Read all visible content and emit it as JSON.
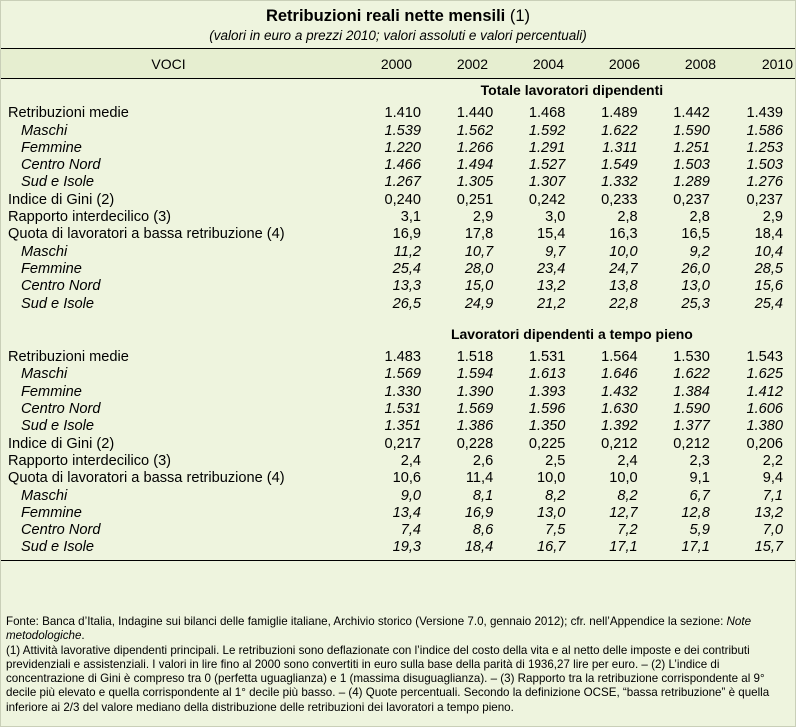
{
  "title": {
    "main": "Retribuzioni reali nette mensili",
    "note_ref": "(1)",
    "subtitle": "(valori in euro a prezzi 2010; valori assoluti e valori percentuali)"
  },
  "header": {
    "voci": "VOCI",
    "years": [
      "2000",
      "2002",
      "2004",
      "2006",
      "2008",
      "2010"
    ]
  },
  "sections": [
    {
      "title": "Totale lavoratori dipendenti",
      "rows": [
        {
          "label": "Retribuzioni medie",
          "values": [
            "1.410",
            "1.440",
            "1.468",
            "1.489",
            "1.442",
            "1.439"
          ],
          "sub": false
        },
        {
          "label": "Maschi",
          "values": [
            "1.539",
            "1.562",
            "1.592",
            "1.622",
            "1.590",
            "1.586"
          ],
          "sub": true
        },
        {
          "label": "Femmine",
          "values": [
            "1.220",
            "1.266",
            "1.291",
            "1.311",
            "1.251",
            "1.253"
          ],
          "sub": true
        },
        {
          "label": "Centro Nord",
          "values": [
            "1.466",
            "1.494",
            "1.527",
            "1.549",
            "1.503",
            "1.503"
          ],
          "sub": true
        },
        {
          "label": "Sud e Isole",
          "values": [
            "1.267",
            "1.305",
            "1.307",
            "1.332",
            "1.289",
            "1.276"
          ],
          "sub": true
        },
        {
          "label": "Indice di Gini (2)",
          "values": [
            "0,240",
            "0,251",
            "0,242",
            "0,233",
            "0,237",
            "0,237"
          ],
          "sub": false
        },
        {
          "label": "Rapporto interdecilico (3)",
          "values": [
            "3,1",
            "2,9",
            "3,0",
            "2,8",
            "2,8",
            "2,9"
          ],
          "sub": false
        },
        {
          "label": "Quota di lavoratori a bassa retribuzione (4)",
          "values": [
            "16,9",
            "17,8",
            "15,4",
            "16,3",
            "16,5",
            "18,4"
          ],
          "sub": false
        },
        {
          "label": "Maschi",
          "values": [
            "11,2",
            "10,7",
            "9,7",
            "10,0",
            "9,2",
            "10,4"
          ],
          "sub": true
        },
        {
          "label": "Femmine",
          "values": [
            "25,4",
            "28,0",
            "23,4",
            "24,7",
            "26,0",
            "28,5"
          ],
          "sub": true
        },
        {
          "label": "Centro Nord",
          "values": [
            "13,3",
            "15,0",
            "13,2",
            "13,8",
            "13,0",
            "15,6"
          ],
          "sub": true
        },
        {
          "label": "Sud e Isole",
          "values": [
            "26,5",
            "24,9",
            "21,2",
            "22,8",
            "25,3",
            "25,4"
          ],
          "sub": true
        }
      ]
    },
    {
      "title": "Lavoratori dipendenti a tempo pieno",
      "rows": [
        {
          "label": "Retribuzioni medie",
          "values": [
            "1.483",
            "1.518",
            "1.531",
            "1.564",
            "1.530",
            "1.543"
          ],
          "sub": false
        },
        {
          "label": "Maschi",
          "values": [
            "1.569",
            "1.594",
            "1.613",
            "1.646",
            "1.622",
            "1.625"
          ],
          "sub": true
        },
        {
          "label": "Femmine",
          "values": [
            "1.330",
            "1.390",
            "1.393",
            "1.432",
            "1.384",
            "1.412"
          ],
          "sub": true
        },
        {
          "label": "Centro Nord",
          "values": [
            "1.531",
            "1.569",
            "1.596",
            "1.630",
            "1.590",
            "1.606"
          ],
          "sub": true
        },
        {
          "label": "Sud e Isole",
          "values": [
            "1.351",
            "1.386",
            "1.350",
            "1.392",
            "1.377",
            "1.380"
          ],
          "sub": true
        },
        {
          "label": "Indice di Gini (2)",
          "values": [
            "0,217",
            "0,228",
            "0,225",
            "0,212",
            "0,212",
            "0,206"
          ],
          "sub": false
        },
        {
          "label": "Rapporto interdecilico (3)",
          "values": [
            "2,4",
            "2,6",
            "2,5",
            "2,4",
            "2,3",
            "2,2"
          ],
          "sub": false
        },
        {
          "label": "Quota di lavoratori a bassa retribuzione (4)",
          "values": [
            "10,6",
            "11,4",
            "10,0",
            "10,0",
            "9,1",
            "9,4"
          ],
          "sub": false
        },
        {
          "label": "Maschi",
          "values": [
            "9,0",
            "8,1",
            "8,2",
            "8,2",
            "6,7",
            "7,1"
          ],
          "sub": true
        },
        {
          "label": "Femmine",
          "values": [
            "13,4",
            "16,9",
            "13,0",
            "12,7",
            "12,8",
            "13,2"
          ],
          "sub": true
        },
        {
          "label": "Centro Nord",
          "values": [
            "7,4",
            "8,6",
            "7,5",
            "7,2",
            "5,9",
            "7,0"
          ],
          "sub": true
        },
        {
          "label": "Sud e Isole",
          "values": [
            "19,3",
            "18,4",
            "16,7",
            "17,1",
            "17,1",
            "15,7"
          ],
          "sub": true
        }
      ]
    }
  ],
  "footnote": {
    "source_prefix": "Fonte: Banca d’Italia, Indagine sui bilanci delle famiglie italiane, Archivio storico (Versione 7.0, gennaio 2012); cfr. nell’Appendice la sezione: ",
    "source_italic": "Note metodologiche",
    "source_suffix": ".",
    "notes": "(1) Attività lavorative dipendenti principali. Le retribuzioni sono deflazionate con l’indice del costo della vita e al netto delle imposte e dei contributi previdenziali e assistenziali. I valori in lire fino al 2000 sono convertiti in euro sulla base della parità di 1936,27 lire per euro. – (2) L’indice di concentrazione di Gini è compreso tra 0 (perfetta uguaglianza) e 1 (massima disuguaglianza). – (3) Rapporto tra la retribuzione corrispondente al 9° decile più elevato e quella corrispondente al 1° decile più basso. – (4) Quote percentuali. Secondo la definizione OCSE, “bassa retribuzione” è quella inferiore ai 2/3 del valore mediano della distribuzione delle retribuzioni dei lavoratori a tempo pieno."
  }
}
